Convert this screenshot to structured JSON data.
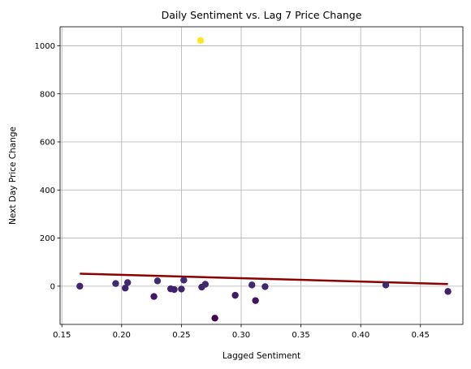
{
  "chart_data": {
    "type": "scatter",
    "title": "Daily Sentiment vs. Lag 7 Price Change",
    "xlabel": "Lagged Sentiment",
    "ylabel": "Next Day Price Change",
    "xlim": [
      0.1485,
      0.4855
    ],
    "ylim": [
      -159,
      1079
    ],
    "xticks": [
      0.15,
      0.2,
      0.25,
      0.3,
      0.35,
      0.4,
      0.45
    ],
    "xtick_labels": [
      "0.15",
      "0.20",
      "0.25",
      "0.30",
      "0.35",
      "0.40",
      "0.45"
    ],
    "yticks": [
      0,
      200,
      400,
      600,
      800,
      1000
    ],
    "ytick_labels": [
      "0",
      "200",
      "400",
      "600",
      "800",
      "1000"
    ],
    "grid": true,
    "colormap": "viridis",
    "color_encoding": "y",
    "points": [
      {
        "x": 0.165,
        "y": 0
      },
      {
        "x": 0.195,
        "y": 11
      },
      {
        "x": 0.203,
        "y": -8
      },
      {
        "x": 0.205,
        "y": 15
      },
      {
        "x": 0.227,
        "y": -43
      },
      {
        "x": 0.23,
        "y": 22
      },
      {
        "x": 0.241,
        "y": -11
      },
      {
        "x": 0.244,
        "y": -14
      },
      {
        "x": 0.25,
        "y": -12
      },
      {
        "x": 0.252,
        "y": 25
      },
      {
        "x": 0.266,
        "y": 1022
      },
      {
        "x": 0.267,
        "y": -4
      },
      {
        "x": 0.27,
        "y": 8
      },
      {
        "x": 0.278,
        "y": -133
      },
      {
        "x": 0.295,
        "y": -38
      },
      {
        "x": 0.309,
        "y": 5
      },
      {
        "x": 0.312,
        "y": -60
      },
      {
        "x": 0.32,
        "y": -2
      },
      {
        "x": 0.421,
        "y": 5
      },
      {
        "x": 0.473,
        "y": -22
      }
    ],
    "trend_line": {
      "x": [
        0.165,
        0.473
      ],
      "y": [
        52,
        9
      ],
      "color": "#8b0000"
    }
  }
}
